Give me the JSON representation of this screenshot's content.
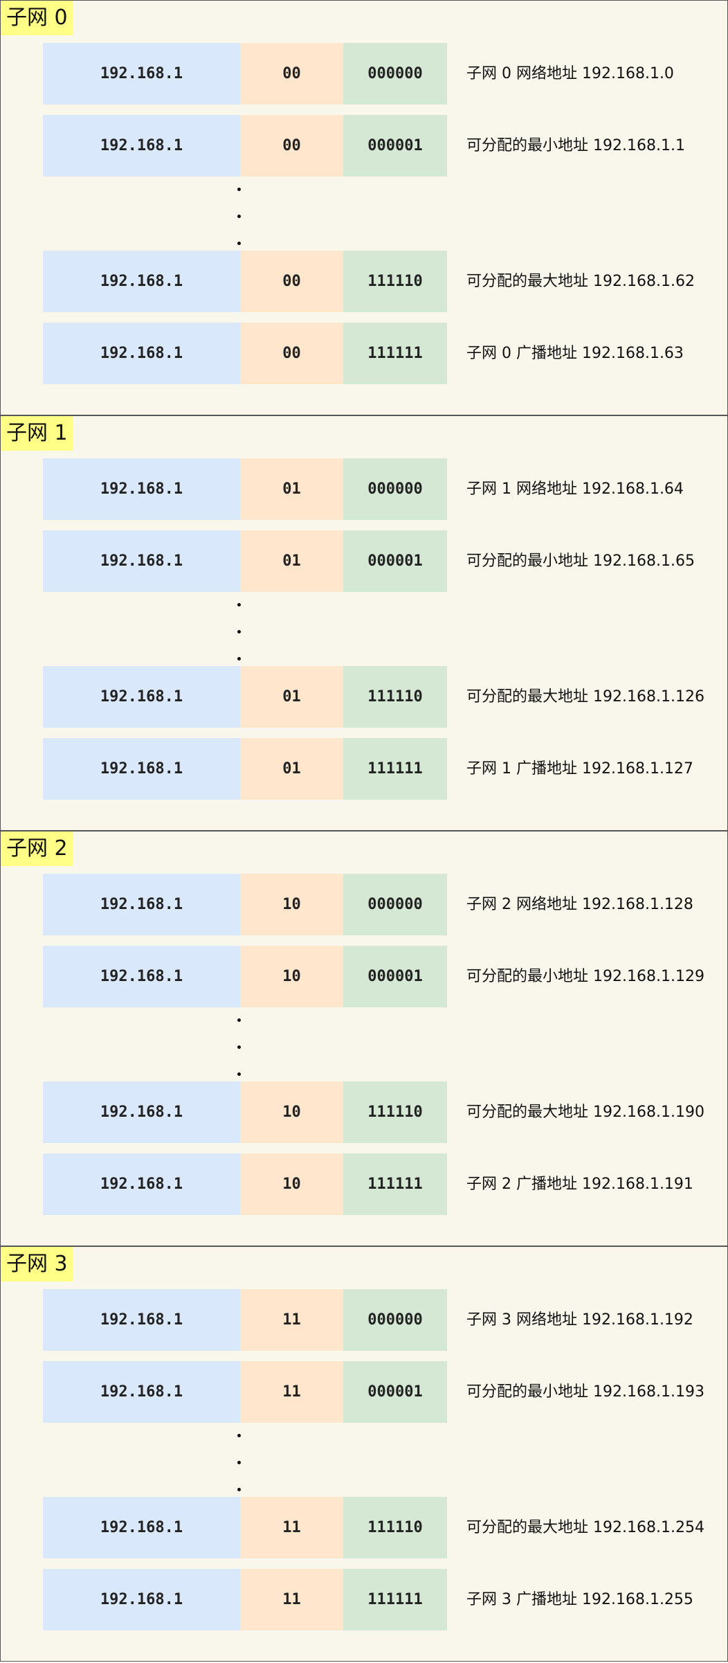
{
  "colors": {
    "network": "#dae8fc",
    "subnet": "#ffe6cc",
    "host": "#d5e8d4",
    "label": "#ffff88",
    "background": "#f9f7ec"
  },
  "sections": [
    {
      "label": "子网 0",
      "rows": [
        {
          "network": "192.168.1",
          "subnet": "00",
          "host": "000000",
          "desc": "子网 0 网络地址 192.168.1.0"
        },
        {
          "network": "192.168.1",
          "subnet": "00",
          "host": "000001",
          "desc": "可分配的最小地址 192.168.1.1"
        },
        {
          "network": "192.168.1",
          "subnet": "00",
          "host": "111110",
          "desc": "可分配的最大地址 192.168.1.62"
        },
        {
          "network": "192.168.1",
          "subnet": "00",
          "host": "111111",
          "desc": "子网 0 广播地址 192.168.1.63"
        }
      ]
    },
    {
      "label": "子网 1",
      "rows": [
        {
          "network": "192.168.1",
          "subnet": "01",
          "host": "000000",
          "desc": "子网 1 网络地址 192.168.1.64"
        },
        {
          "network": "192.168.1",
          "subnet": "01",
          "host": "000001",
          "desc": "可分配的最小地址 192.168.1.65"
        },
        {
          "network": "192.168.1",
          "subnet": "01",
          "host": "111110",
          "desc": "可分配的最大地址 192.168.1.126"
        },
        {
          "network": "192.168.1",
          "subnet": "01",
          "host": "111111",
          "desc": "子网 1 广播地址 192.168.1.127"
        }
      ]
    },
    {
      "label": "子网 2",
      "rows": [
        {
          "network": "192.168.1",
          "subnet": "10",
          "host": "000000",
          "desc": "子网 2 网络地址 192.168.1.128"
        },
        {
          "network": "192.168.1",
          "subnet": "10",
          "host": "000001",
          "desc": "可分配的最小地址 192.168.1.129"
        },
        {
          "network": "192.168.1",
          "subnet": "10",
          "host": "111110",
          "desc": "可分配的最大地址 192.168.1.190"
        },
        {
          "network": "192.168.1",
          "subnet": "10",
          "host": "111111",
          "desc": "子网 2 广播地址 192.168.1.191"
        }
      ]
    },
    {
      "label": "子网 3",
      "rows": [
        {
          "network": "192.168.1",
          "subnet": "11",
          "host": "000000",
          "desc": "子网 3 网络地址 192.168.1.192"
        },
        {
          "network": "192.168.1",
          "subnet": "11",
          "host": "000001",
          "desc": "可分配的最小地址 192.168.1.193"
        },
        {
          "network": "192.168.1",
          "subnet": "11",
          "host": "111110",
          "desc": "可分配的最大地址 192.168.1.254"
        },
        {
          "network": "192.168.1",
          "subnet": "11",
          "host": "111111",
          "desc": "子网 3 广播地址 192.168.1.255"
        }
      ]
    }
  ]
}
